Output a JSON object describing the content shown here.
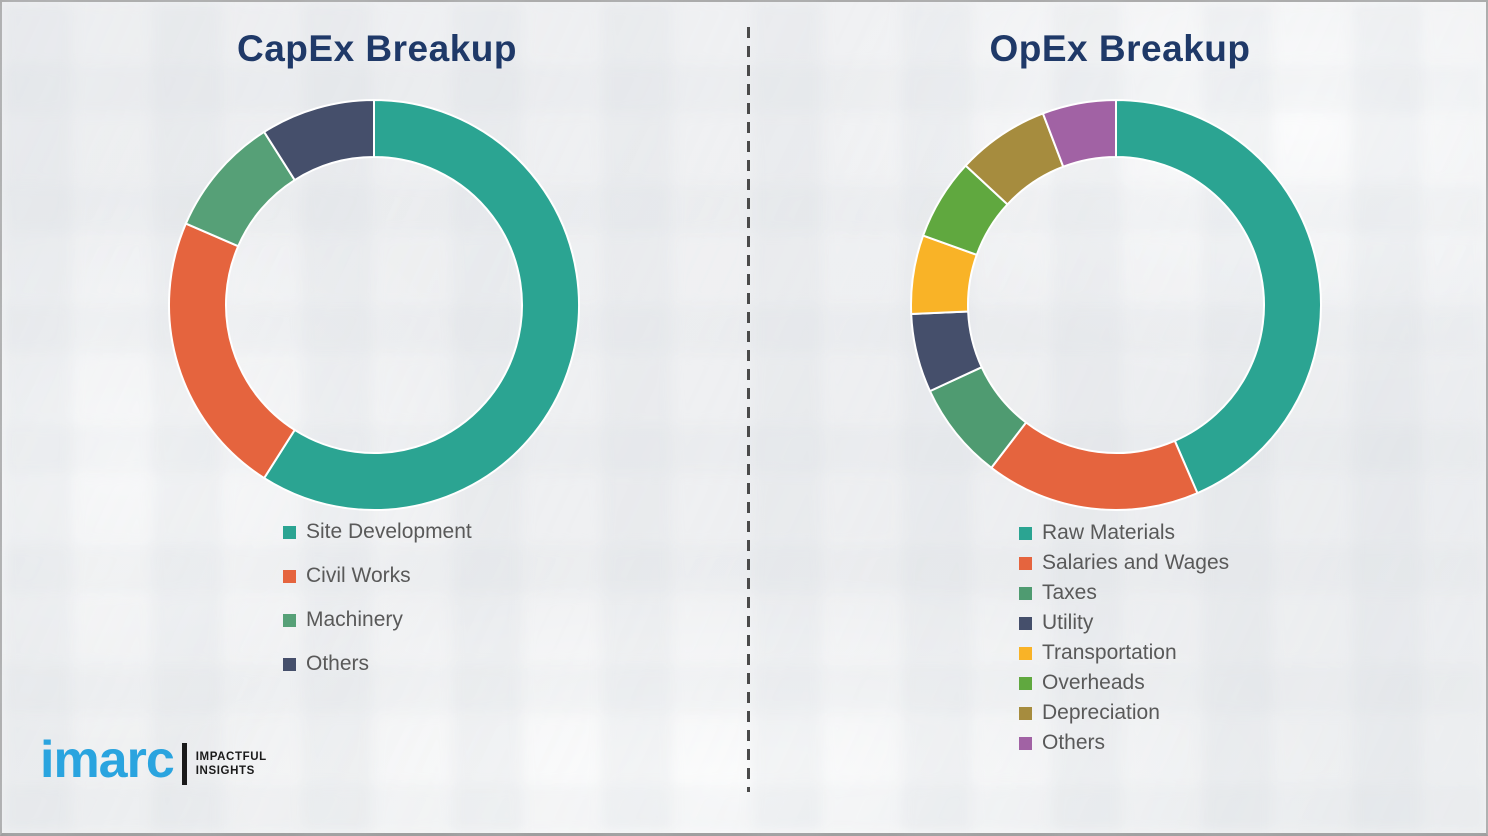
{
  "page": {
    "background_color": "#f0f1f3",
    "frame_border_color": "#ababab",
    "divider_color": "#4a4a4a",
    "title_color": "#1f3968",
    "legend_text_color": "#595959"
  },
  "logo": {
    "brand": "imarc",
    "brand_color": "#2aa4df",
    "tagline_line1": "IMPACTFUL",
    "tagline_line2": "INSIGHTS"
  },
  "chart_data": [
    {
      "type": "pie",
      "variant": "donut",
      "title": "CapEx Breakup",
      "categories": [
        "Site Development",
        "Civil Works",
        "Machinery",
        "Others"
      ],
      "values": [
        59,
        22.5,
        9.5,
        9
      ],
      "unit": "percent-estimated",
      "colors": [
        "#2ba492",
        "#e5643e",
        "#56a077",
        "#454f6b"
      ],
      "start_angle_deg": 0,
      "direction": "clockwise",
      "inner_radius_ratio": 0.72,
      "segment_gap_color": "#ffffff",
      "legend_position": "below-left"
    },
    {
      "type": "pie",
      "variant": "donut",
      "title": "OpEx Breakup",
      "categories": [
        "Raw Materials",
        "Salaries and Wages",
        "Taxes",
        "Utility",
        "Transportation",
        "Overheads",
        "Depreciation",
        "Others"
      ],
      "values": [
        43.5,
        16.9,
        7.7,
        6.2,
        6.2,
        6.4,
        7.3,
        5.8
      ],
      "unit": "percent-estimated",
      "colors": [
        "#2ba492",
        "#e5643e",
        "#4f9b71",
        "#454f6b",
        "#f9b327",
        "#60a83f",
        "#a68c3e",
        "#a162a4"
      ],
      "start_angle_deg": 0,
      "direction": "clockwise",
      "inner_radius_ratio": 0.72,
      "segment_gap_color": "#ffffff",
      "legend_position": "below-left"
    }
  ]
}
